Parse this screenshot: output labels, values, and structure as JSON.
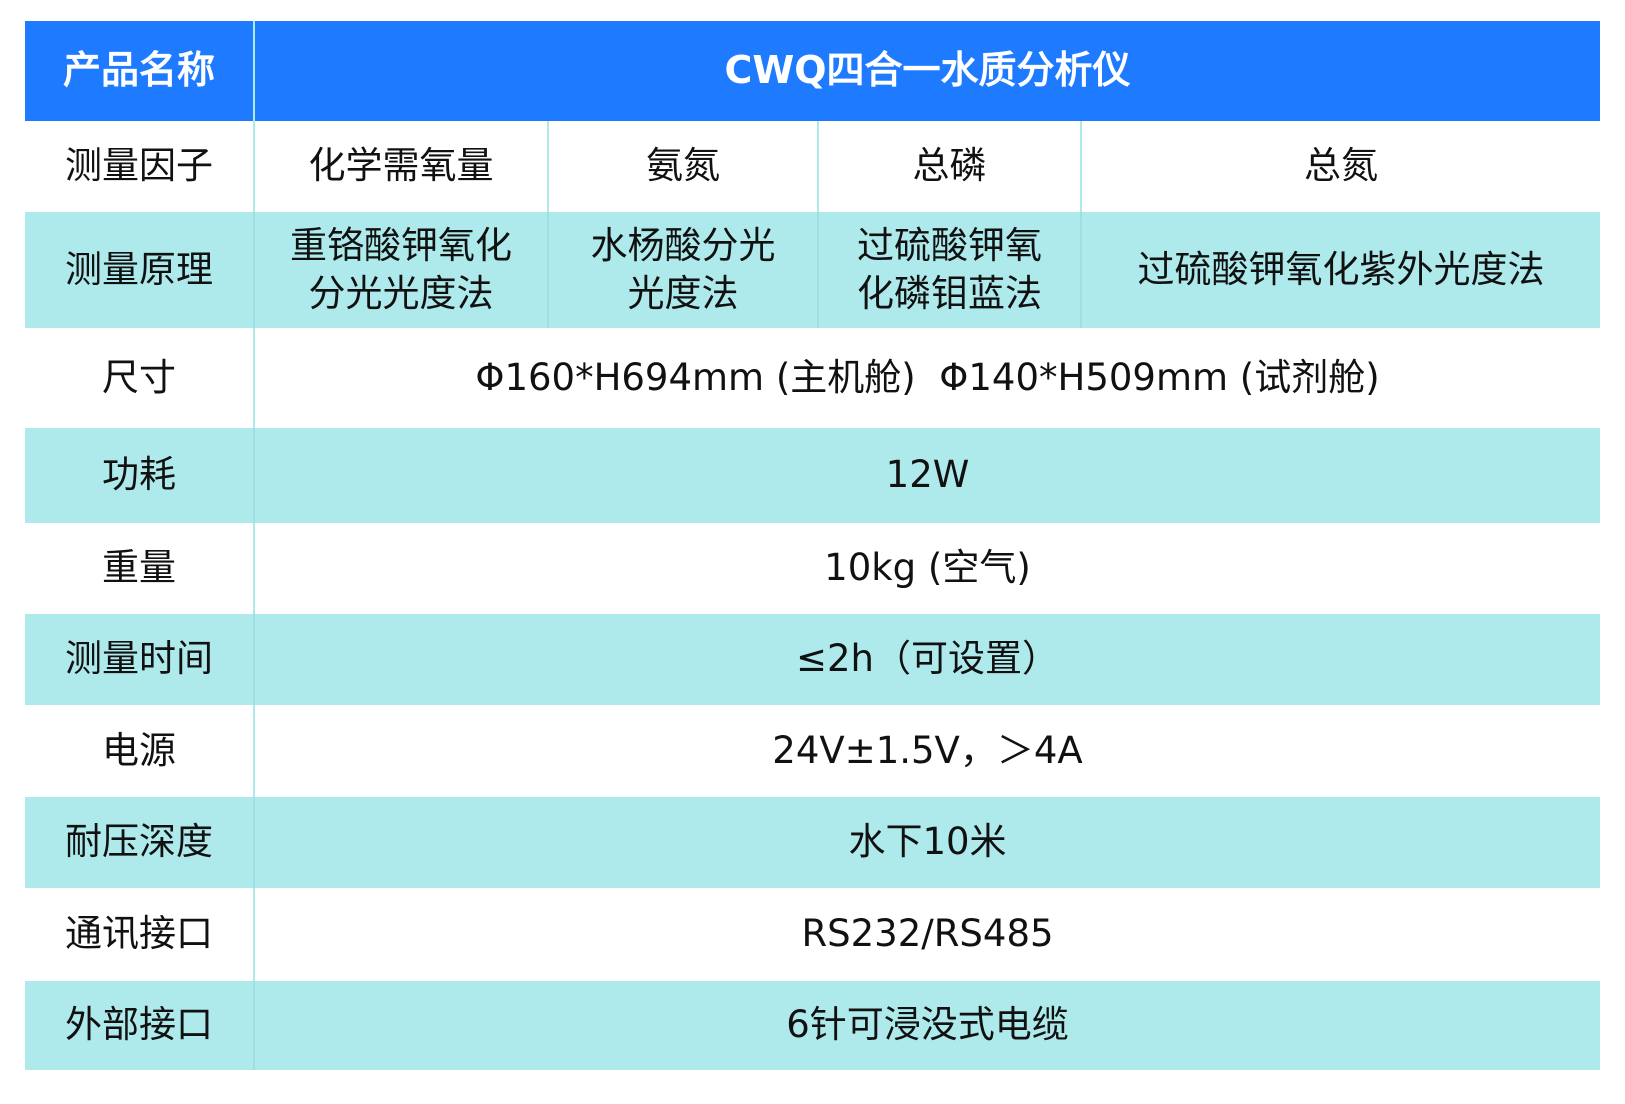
{
  "header": {
    "label": "产品名称",
    "value": "CWQ四合一水质分析仪"
  },
  "factors": {
    "label": "测量因子",
    "items": [
      "化学需氧量",
      "氨氮",
      "总磷",
      "总氮"
    ]
  },
  "principles": {
    "label": "测量原理",
    "items": [
      "重铬酸钾氧化\n分光光度法",
      "水杨酸分光\n光度法",
      "过硫酸钾氧\n化磷钼蓝法",
      "过硫酸钾氧化紫外光度法"
    ]
  },
  "rows": [
    {
      "label": "尺寸",
      "value": "Φ160*H694mm (主机舱)  Φ140*H509mm (试剂舱)"
    },
    {
      "label": "功耗",
      "value": "12W"
    },
    {
      "label": "重量",
      "value": "10kg (空气)"
    },
    {
      "label": "测量时间",
      "value": "≤2h（可设置）"
    },
    {
      "label": "电源",
      "value": "24V±1.5V，＞4A"
    },
    {
      "label": "耐压深度",
      "value": "水下10米"
    },
    {
      "label": "通讯接口",
      "value": "RS232/RS485"
    },
    {
      "label": "外部接口",
      "value": "6针可浸没式电缆"
    }
  ],
  "colors": {
    "header": "#1e7bff",
    "stripe": "#aeeaec"
  }
}
